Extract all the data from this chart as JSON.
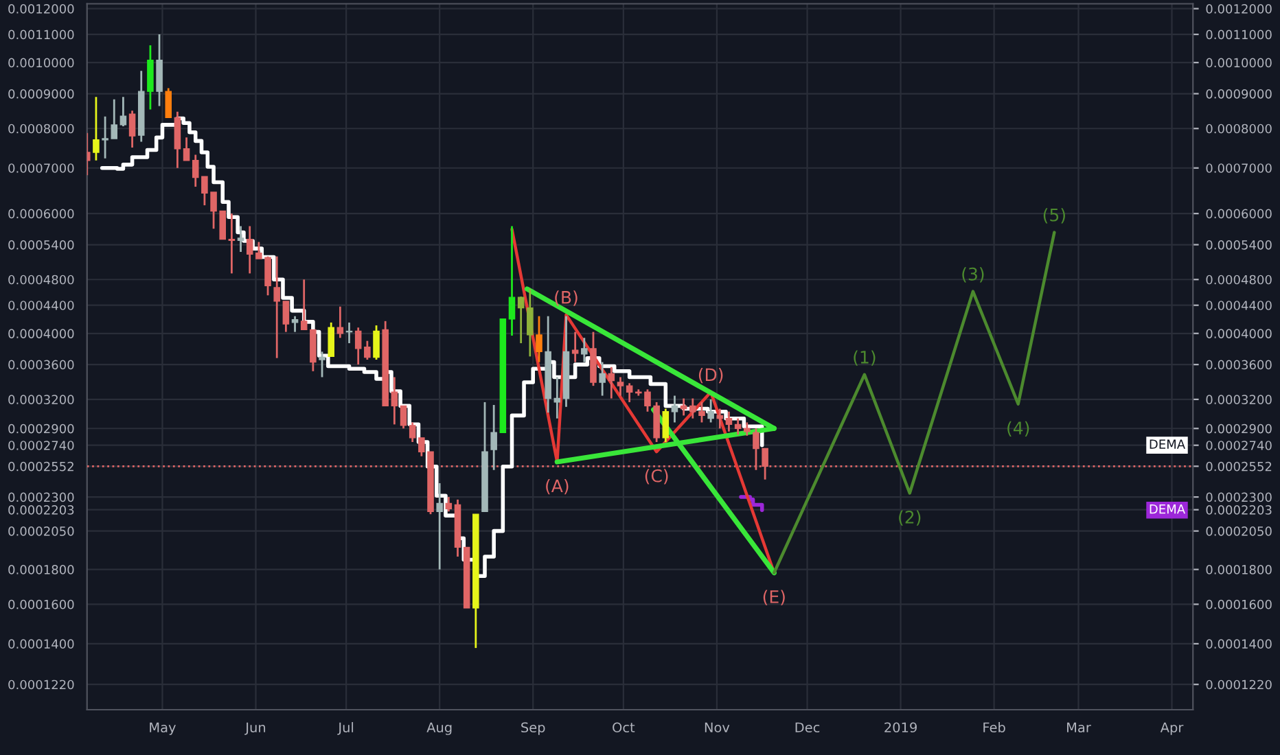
{
  "chart_data": {
    "type": "candlestick",
    "x": [
      "2018-04-06",
      "2018-04-09",
      "2018-04-12",
      "2018-04-15",
      "2018-04-18",
      "2018-04-21",
      "2018-04-24",
      "2018-04-27",
      "2018-04-30",
      "2018-05-03",
      "2018-05-06",
      "2018-05-09",
      "2018-05-12",
      "2018-05-15",
      "2018-05-18",
      "2018-05-21",
      "2018-05-24",
      "2018-05-27",
      "2018-05-30",
      "2018-06-02",
      "2018-06-05",
      "2018-06-08",
      "2018-06-11",
      "2018-06-14",
      "2018-06-17",
      "2018-06-20",
      "2018-06-23",
      "2018-06-26",
      "2018-06-29",
      "2018-07-02",
      "2018-07-05",
      "2018-07-08",
      "2018-07-11",
      "2018-07-14",
      "2018-07-17",
      "2018-07-20",
      "2018-07-23",
      "2018-07-26",
      "2018-07-29",
      "2018-08-01",
      "2018-08-04",
      "2018-08-07",
      "2018-08-10",
      "2018-08-13",
      "2018-08-16",
      "2018-08-19",
      "2018-08-22",
      "2018-08-25",
      "2018-08-28",
      "2018-08-31",
      "2018-09-03",
      "2018-09-06",
      "2018-09-09",
      "2018-09-12",
      "2018-09-15",
      "2018-09-18",
      "2018-09-21",
      "2018-09-24",
      "2018-09-27",
      "2018-09-30",
      "2018-10-03",
      "2018-10-06",
      "2018-10-09",
      "2018-10-12",
      "2018-10-15",
      "2018-10-18",
      "2018-10-21",
      "2018-10-24",
      "2018-10-27",
      "2018-10-30",
      "2018-11-02",
      "2018-11-05",
      "2018-11-08",
      "2018-11-11",
      "2018-11-14",
      "2018-11-17"
    ],
    "ohlc": [
      [
        0.000738,
        0.000788,
        0.000683,
        0.000718
      ],
      [
        0.000738,
        0.00089,
        0.000718,
        0.00077
      ],
      [
        0.00077,
        0.000833,
        0.000723,
        0.000773
      ],
      [
        0.000773,
        0.000883,
        0.000773,
        0.00081
      ],
      [
        0.00081,
        0.00089,
        0.000806,
        0.000834
      ],
      [
        0.00084,
        0.00085,
        0.00075,
        0.00078
      ],
      [
        0.000782,
        0.000972,
        0.000765,
        0.000907
      ],
      [
        0.000907,
        0.00106,
        0.000853,
        0.001008
      ],
      [
        0.000907,
        0.0011,
        0.000863,
        0.001008
      ],
      [
        0.000907,
        0.000917,
        0.00083,
        0.00083
      ],
      [
        0.00083,
        0.000847,
        0.0007,
        0.000747
      ],
      [
        0.000747,
        0.000776,
        0.000718,
        0.000718
      ],
      [
        0.000718,
        0.000732,
        0.000657,
        0.000678
      ],
      [
        0.00068,
        0.00068,
        0.000617,
        0.000643
      ],
      [
        0.000645,
        0.000645,
        0.00057,
        0.000605
      ],
      [
        0.000605,
        0.000605,
        0.00055,
        0.00055
      ],
      [
        0.00055,
        0.0006,
        0.00049,
        0.000548
      ],
      [
        0.000548,
        0.000575,
        0.000527,
        0.000552
      ],
      [
        0.00055,
        0.000575,
        0.00049,
        0.000523
      ],
      [
        0.000525,
        0.000545,
        0.000515,
        0.000515
      ],
      [
        0.000517,
        0.000519,
        0.000455,
        0.00047
      ],
      [
        0.000467,
        0.000519,
        0.000368,
        0.000446
      ],
      [
        0.000446,
        0.000446,
        0.000402,
        0.000413
      ],
      [
        0.000415,
        0.000424,
        0.000402,
        0.000419
      ],
      [
        0.000417,
        0.00048,
        0.000405,
        0.000405
      ],
      [
        0.000405,
        0.000405,
        0.000352,
        0.000363
      ],
      [
        0.000366,
        0.000376,
        0.000345,
        0.000369
      ],
      [
        0.00037,
        0.000415,
        0.00037,
        0.000408
      ],
      [
        0.000408,
        0.000438,
        0.000394,
        0.0004
      ],
      [
        0.000402,
        0.000415,
        0.000387,
        0.000403
      ],
      [
        0.000403,
        0.000408,
        0.00036,
        0.00038
      ],
      [
        0.000382,
        0.00039,
        0.000366,
        0.000369
      ],
      [
        0.000369,
        0.000411,
        0.000366,
        0.000403
      ],
      [
        0.000405,
        0.000417,
        0.000313,
        0.000313
      ],
      [
        0.000328,
        0.000345,
        0.000294,
        0.000313
      ],
      [
        0.000313,
        0.000313,
        0.00029,
        0.000293
      ],
      [
        0.000293,
        0.000296,
        0.000277,
        0.000281
      ],
      [
        0.000281,
        0.000281,
        0.000264,
        0.000268
      ],
      [
        0.000268,
        0.000268,
        0.000217,
        0.000219
      ],
      [
        0.000219,
        0.000241,
        0.00018,
        0.000225
      ],
      [
        0.000225,
        0.00023,
        0.000219,
        0.000221
      ],
      [
        0.000224,
        0.000228,
        0.000188,
        0.000194
      ],
      [
        0.000194,
        0.000194,
        0.000158,
        0.000158
      ],
      [
        0.000158,
        0.000217,
        0.000138,
        0.000217
      ],
      [
        0.000219,
        0.000317,
        0.000219,
        0.000268
      ],
      [
        0.00027,
        0.000314,
        0.000252,
        0.000286
      ],
      [
        0.000286,
        0.00042,
        0.000286,
        0.00042
      ],
      [
        0.00042,
        0.000575,
        0.000397,
        0.000452
      ],
      [
        0.000452,
        0.000453,
        0.000387,
        0.000436
      ],
      [
        0.000436,
        0.000465,
        0.00037,
        0.000398
      ],
      [
        0.000398,
        0.000424,
        0.000363,
        0.000376
      ],
      [
        0.000321,
        0.000424,
        0.000306,
        0.000376
      ],
      [
        0.000317,
        0.000345,
        0.0003,
        0.000321
      ],
      [
        0.000321,
        0.000424,
        0.000312,
        0.000376
      ],
      [
        0.000378,
        0.000402,
        0.000363,
        0.000374
      ],
      [
        0.000373,
        0.000394,
        0.000363,
        0.00038
      ],
      [
        0.00038,
        0.000402,
        0.000335,
        0.000339
      ],
      [
        0.000339,
        0.000363,
        0.000324,
        0.000349
      ],
      [
        0.000349,
        0.000357,
        0.000321,
        0.000341
      ],
      [
        0.000339,
        0.000345,
        0.000324,
        0.000335
      ],
      [
        0.000335,
        0.000338,
        0.000317,
        0.000328
      ],
      [
        0.000328,
        0.000331,
        0.000324,
        0.000327
      ],
      [
        0.000328,
        0.000331,
        0.000307,
        0.000313
      ],
      [
        0.000313,
        0.000317,
        0.000277,
        0.000281
      ],
      [
        0.000281,
        0.00031,
        0.000277,
        0.000307
      ],
      [
        0.000307,
        0.000324,
        0.000296,
        0.000313
      ],
      [
        0.000313,
        0.000321,
        0.000303,
        0.00031
      ],
      [
        0.000313,
        0.000321,
        0.0003,
        0.000307
      ],
      [
        0.000307,
        0.000317,
        0.000296,
        0.000303
      ],
      [
        0.0003,
        0.00032,
        0.000296,
        0.000307
      ],
      [
        0.000303,
        0.00031,
        0.00029,
        0.0003
      ],
      [
        0.0003,
        0.000307,
        0.000287,
        0.000294
      ],
      [
        0.000294,
        0.0003,
        0.000284,
        0.00029
      ],
      [
        0.00029,
        0.000296,
        0.000283,
        0.000287
      ],
      [
        0.000286,
        0.00029,
        0.000252,
        0.000271
      ],
      [
        0.000271,
        0.000271,
        0.000244,
        0.0002552
      ]
    ],
    "colors": [
      "#e06666",
      "#e6f51a",
      "#a3b8b8",
      "#a3b8b8",
      "#a3b8b8",
      "#e06666",
      "#a3b8b8",
      "#1de91d",
      "#a3b8b8",
      "#ff7f0e",
      "#e06666",
      "#e06666",
      "#e06666",
      "#e06666",
      "#e06666",
      "#e06666",
      "#e06666",
      "#a3b8b8",
      "#e06666",
      "#e06666",
      "#e06666",
      "#e06666",
      "#e06666",
      "#a3b8b8",
      "#e06666",
      "#e06666",
      "#a3b8b8",
      "#e6f51a",
      "#e06666",
      "#a3b8b8",
      "#e06666",
      "#e06666",
      "#e6f51a",
      "#e06666",
      "#e06666",
      "#e06666",
      "#e06666",
      "#e06666",
      "#e06666",
      "#a3b8b8",
      "#e06666",
      "#e06666",
      "#e06666",
      "#e6f51a",
      "#a3b8b8",
      "#a3b8b8",
      "#1de91d",
      "#1de91d",
      "#8fb33a",
      "#8fb33a",
      "#ff7f0e",
      "#a3b8b8",
      "#a3b8b8",
      "#a3b8b8",
      "#e06666",
      "#a3b8b8",
      "#e06666",
      "#a3b8b8",
      "#e06666",
      "#e06666",
      "#e06666",
      "#e06666",
      "#e06666",
      "#e06666",
      "#e6f51a",
      "#a3b8b8",
      "#e06666",
      "#e06666",
      "#e06666",
      "#a3b8b8",
      "#e06666",
      "#e06666",
      "#e06666",
      "#e06666",
      "#e06666",
      "#e06666"
    ],
    "series": [
      {
        "type": "step",
        "color": "#ffffff",
        "x": [
          "2018-04-11",
          "2018-04-16",
          "2018-04-18",
          "2018-04-21",
          "2018-04-26",
          "2018-04-29",
          "2018-05-01",
          "2018-05-06",
          "2018-05-08",
          "2018-05-10",
          "2018-05-12",
          "2018-05-14",
          "2018-05-16",
          "2018-05-18",
          "2018-05-21",
          "2018-05-23",
          "2018-05-26",
          "2018-05-28",
          "2018-05-31",
          "2018-06-03",
          "2018-06-07",
          "2018-06-10",
          "2018-06-13",
          "2018-06-17",
          "2018-06-20",
          "2018-06-22",
          "2018-06-25",
          "2018-07-02",
          "2018-07-07",
          "2018-07-11",
          "2018-07-14",
          "2018-07-16",
          "2018-07-19",
          "2018-07-22",
          "2018-07-25",
          "2018-07-28",
          "2018-07-31",
          "2018-08-03",
          "2018-08-07",
          "2018-08-09",
          "2018-08-13",
          "2018-08-16",
          "2018-08-19",
          "2018-08-22",
          "2018-08-25",
          "2018-08-29",
          "2018-09-01",
          "2018-09-06",
          "2018-09-08",
          "2018-09-13",
          "2018-09-15",
          "2018-09-19",
          "2018-09-23",
          "2018-09-28",
          "2018-10-03",
          "2018-10-10",
          "2018-10-15",
          "2018-10-21",
          "2018-10-29",
          "2018-11-04",
          "2018-11-10",
          "2018-11-16"
        ],
        "values": [
          0.0007,
          0.000698,
          0.000708,
          0.000726,
          0.000744,
          0.000776,
          0.00081,
          0.000828,
          0.000815,
          0.00079,
          0.000767,
          0.000738,
          0.000703,
          0.000667,
          0.000624,
          0.000593,
          0.000563,
          0.000547,
          0.000533,
          0.000518,
          0.00048,
          0.000451,
          0.000432,
          0.000416,
          0.000402,
          0.000371,
          0.000358,
          0.000355,
          0.000351,
          0.000343,
          0.000351,
          0.000329,
          0.000313,
          0.000294,
          0.000277,
          0.000255,
          0.000231,
          0.000216,
          0.0002,
          0.000186,
          0.000176,
          0.000188,
          0.000205,
          0.000255,
          0.000303,
          0.000339,
          0.000355,
          0.000363,
          0.000345,
          0.000345,
          0.00036,
          0.000368,
          0.000358,
          0.000352,
          0.000345,
          0.000337,
          0.000313,
          0.00031,
          0.000307,
          0.0003,
          0.000292,
          0.000274
        ]
      },
      {
        "type": "step",
        "color": "#9c27d9",
        "x": [
          "2018-11-09",
          "2018-11-12",
          "2018-11-13",
          "2018-11-16"
        ],
        "values": [
          0.00023,
          0.000228,
          0.000224,
          0.00022
        ]
      },
      {
        "type": "line",
        "color": "#e53935",
        "x": [
          "2018-08-25",
          "2018-09-09",
          "2018-09-12",
          "2018-10-12",
          "2018-10-30",
          "2018-11-20"
        ],
        "values": [
          0.000569,
          0.000259,
          0.000426,
          0.000268,
          0.000328,
          0.000178
        ]
      },
      {
        "type": "line",
        "color": "#39e639",
        "x": [
          "2018-08-30",
          "2018-11-20"
        ],
        "values": [
          0.000465,
          0.00029
        ]
      },
      {
        "type": "line",
        "color": "#39e639",
        "x": [
          "2018-09-09",
          "2018-11-20"
        ],
        "values": [
          0.000259,
          0.00029
        ]
      },
      {
        "type": "line",
        "color": "#39e639",
        "x": [
          "2018-10-11",
          "2018-11-20"
        ],
        "values": [
          0.000309,
          0.000178
        ]
      },
      {
        "type": "line",
        "color": "#4c8a2e",
        "x": [
          "2018-11-20",
          "2018-12-20",
          "2019-01-04",
          "2019-01-25",
          "2019-02-09",
          "2019-02-21"
        ],
        "values": [
          0.000178,
          0.000348,
          0.000233,
          0.000461,
          0.000315,
          0.000563
        ]
      }
    ],
    "annotations": [
      {
        "text": "(A)",
        "x": "2018-09-09",
        "y": 0.000259
      },
      {
        "text": "(B)",
        "x": "2018-09-12",
        "y": 0.000426
      },
      {
        "text": "(C)",
        "x": "2018-10-12",
        "y": 0.000268
      },
      {
        "text": "(D)",
        "x": "2018-10-30",
        "y": 0.000328
      },
      {
        "text": "(E)",
        "x": "2018-11-20",
        "y": 0.000178
      },
      {
        "text": "(1)",
        "x": "2018-12-20",
        "y": 0.000348
      },
      {
        "text": "(2)",
        "x": "2019-01-04",
        "y": 0.000233
      },
      {
        "text": "(3)",
        "x": "2019-01-25",
        "y": 0.000461
      },
      {
        "text": "(4)",
        "x": "2019-02-09",
        "y": 0.000315
      },
      {
        "text": "(5)",
        "x": "2019-02-21",
        "y": 0.000563
      },
      "DEMA",
      "DEMA"
    ],
    "ref_lines": [
      {
        "axis": "y",
        "value": 0.0002552,
        "color": "#e06666",
        "line_style": "dotted"
      }
    ],
    "log": "y",
    "xlim": [
      "2018-04-06",
      "2019-04-08"
    ],
    "xticks": [
      {
        "value": "2018-05-01",
        "label": "May"
      },
      {
        "value": "2018-06-01",
        "label": "Jun"
      },
      {
        "value": "2018-07-01",
        "label": "Jul"
      },
      {
        "value": "2018-08-01",
        "label": "Aug"
      },
      {
        "value": "2018-09-01",
        "label": "Sep"
      },
      {
        "value": "2018-10-01",
        "label": "Oct"
      },
      {
        "value": "2018-11-01",
        "label": "Nov"
      },
      {
        "value": "2018-12-01",
        "label": "Dec"
      },
      {
        "value": "2019-01-01",
        "label": "2019"
      },
      {
        "value": "2019-02-01",
        "label": "Feb"
      },
      {
        "value": "2019-03-01",
        "label": "Mar"
      },
      {
        "value": "2019-04-01",
        "label": "Apr"
      }
    ],
    "ylim": [
      0.000112,
      0.00122
    ],
    "yticks": [
      {
        "value": 0.000122,
        "label": "0.0001220"
      },
      {
        "value": 0.00014,
        "label": "0.0001400"
      },
      {
        "value": 0.00016,
        "label": "0.0001600"
      },
      {
        "value": 0.00018,
        "label": "0.0001800"
      },
      {
        "value": 0.000205,
        "label": "0.0002050"
      },
      {
        "value": 0.0002203,
        "label": "0.0002203"
      },
      {
        "value": 0.00023,
        "label": "0.0002300"
      },
      {
        "value": 0.0002552,
        "label": "0.0002552"
      },
      {
        "value": 0.000274,
        "label": "0.0002740"
      },
      {
        "value": 0.00029,
        "label": "0.0002900"
      },
      {
        "value": 0.00032,
        "label": "0.0003200"
      },
      {
        "value": 0.00036,
        "label": "0.0003600"
      },
      {
        "value": 0.0004,
        "label": "0.0004000"
      },
      {
        "value": 0.00044,
        "label": "0.0004400"
      },
      {
        "value": 0.00048,
        "label": "0.0004800"
      },
      {
        "value": 0.00054,
        "label": "0.0005400"
      },
      {
        "value": 0.0006,
        "label": "0.0006000"
      },
      {
        "value": 0.0007,
        "label": "0.0007000"
      },
      {
        "value": 0.0008,
        "label": "0.0008000"
      },
      {
        "value": 0.0009,
        "label": "0.0009000"
      },
      {
        "value": 0.001,
        "label": "0.0010000"
      },
      {
        "value": 0.0011,
        "label": "0.0011000"
      },
      {
        "value": 0.0012,
        "label": "0.0012000"
      }
    ],
    "grid": true
  }
}
